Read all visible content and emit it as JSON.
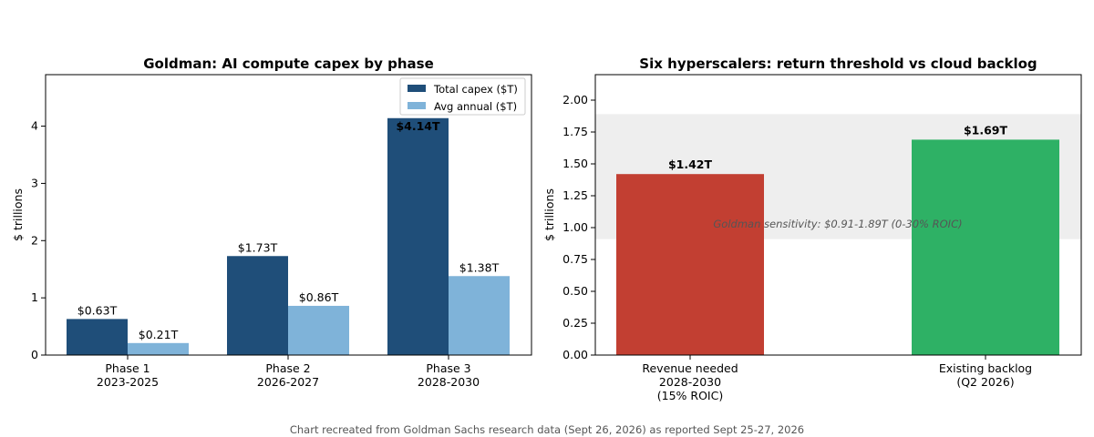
{
  "footer": "Chart recreated from Goldman Sachs research data (Sept 26, 2026) as reported Sept 25-27, 2026",
  "chart_data": [
    {
      "type": "bar",
      "title": "Goldman: AI compute capex by phase",
      "ylabel": "$ trillions",
      "xlabel": "",
      "ylim": [
        0,
        4.9
      ],
      "yticks": [
        "0",
        "1",
        "2",
        "3",
        "4"
      ],
      "categories": [
        [
          "Phase 1",
          "2023-2025"
        ],
        [
          "Phase 2",
          "2026-2027"
        ],
        [
          "Phase 3",
          "2028-2030"
        ]
      ],
      "legend_position": "top-right",
      "series": [
        {
          "name": "Total capex ($T)",
          "color": "#1f4e79",
          "values": [
            0.63,
            1.73,
            4.14
          ],
          "labels": [
            "$0.63T",
            "$1.73T",
            "$4.14T"
          ]
        },
        {
          "name": "Avg annual ($T)",
          "color": "#7fb3d9",
          "values": [
            0.21,
            0.86,
            1.38
          ],
          "labels": [
            "$0.21T",
            "$0.86T",
            "$1.38T"
          ]
        }
      ]
    },
    {
      "type": "bar",
      "title": "Six hyperscalers: return threshold vs cloud backlog",
      "ylabel": "$ trillions",
      "xlabel": "",
      "ylim": [
        0,
        2.2
      ],
      "yticks": [
        "0.00",
        "0.25",
        "0.50",
        "0.75",
        "1.00",
        "1.25",
        "1.50",
        "1.75",
        "2.00"
      ],
      "categories": [
        [
          "Revenue needed",
          "2028-2030",
          "(15% ROIC)"
        ],
        [
          "Existing backlog",
          "(Q2 2026)"
        ]
      ],
      "values": [
        1.42,
        1.69
      ],
      "labels": [
        "$1.42T",
        "$1.69T"
      ],
      "colors": [
        "#c0392b",
        "#27ae60"
      ],
      "band": {
        "from": 0.91,
        "to": 1.89,
        "label": "Goldman sensitivity: $0.91-1.89T (0-30% ROIC)",
        "color": "#e0e0e0"
      }
    }
  ]
}
